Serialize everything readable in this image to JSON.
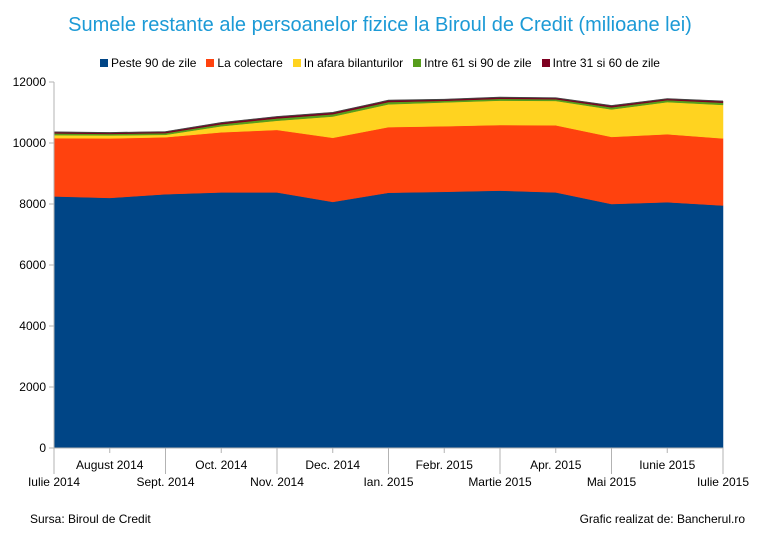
{
  "chart_data": {
    "type": "area",
    "stacked": true,
    "title": "Sumele restante ale persoanelor fizice la Biroul de Credit (milioane lei)",
    "categories": [
      "Iulie 2014",
      "August 2014",
      "Sept. 2014",
      "Oct. 2014",
      "Nov. 2014",
      "Dec. 2014",
      "Ian. 2015",
      "Febr. 2015",
      "Martie 2015",
      "Apr. 2015",
      "Mai 2015",
      "Iunie 2015",
      "Iulie 2015"
    ],
    "series": [
      {
        "name": "Peste 90 de zile",
        "color": "#004586",
        "values": [
          8250,
          8200,
          8320,
          8380,
          8380,
          8070,
          8370,
          8400,
          8440,
          8380,
          8000,
          8060,
          7950
        ]
      },
      {
        "name": "La colectare",
        "color": "#ff420e",
        "values": [
          1910,
          1950,
          1870,
          1970,
          2050,
          2100,
          2150,
          2150,
          2150,
          2200,
          2200,
          2230,
          2200
        ]
      },
      {
        "name": "In afara bilanturilor",
        "color": "#ffd320",
        "values": [
          100,
          100,
          80,
          200,
          300,
          700,
          750,
          780,
          800,
          800,
          900,
          1050,
          1100
        ]
      },
      {
        "name": "Intre 61 si 90 de zile",
        "color": "#579d1c",
        "values": [
          55,
          50,
          55,
          65,
          75,
          75,
          75,
          55,
          60,
          55,
          70,
          65,
          70
        ]
      },
      {
        "name": "Intre 31 si 60 de zile",
        "color": "#7e0021",
        "values": [
          45,
          40,
          45,
          55,
          60,
          55,
          55,
          45,
          50,
          45,
          55,
          45,
          55
        ]
      }
    ],
    "ylim": [
      0,
      12000
    ],
    "yticks": [
      "0",
      "2000",
      "4000",
      "6000",
      "8000",
      "10000",
      "12000"
    ],
    "xlabel": "",
    "ylabel": "",
    "grid": false,
    "legend": "top"
  },
  "notes": {
    "source": "Sursa: Biroul de Credit",
    "credit": "Grafic realizat de: Bancherul.ro"
  }
}
